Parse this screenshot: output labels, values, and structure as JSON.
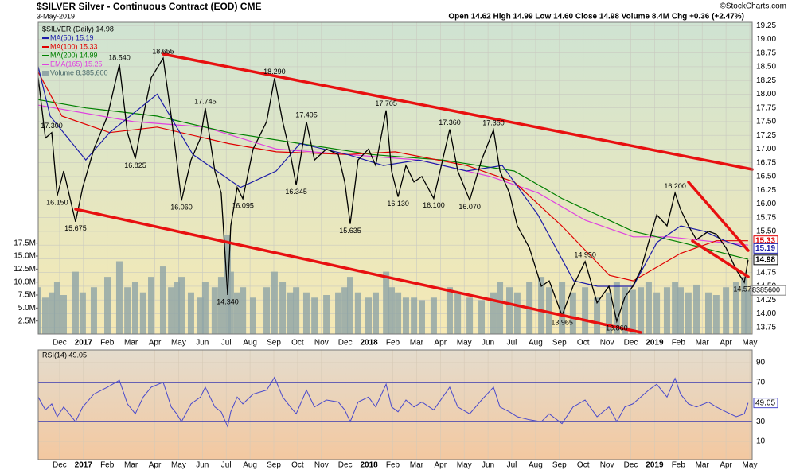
{
  "chart_data": {
    "type": "stock",
    "title": "$SILVER Silver - Continuous Contract (EOD) CME",
    "date": "3-May-2019",
    "quote": "Open 14.62 High 14.99 Low 14.60 Close 14.98 Volume 8.4M Chg +0.36 (+2.47%)",
    "credit": "©StockCharts.com",
    "grid": true,
    "xlim": [
      0,
      30
    ],
    "xticks": [
      {
        "value": 0.9,
        "label": "Dec"
      },
      {
        "value": 1.9,
        "label": "2017"
      },
      {
        "value": 2.9,
        "label": "Feb"
      },
      {
        "value": 3.9,
        "label": "Mar"
      },
      {
        "value": 4.9,
        "label": "Apr"
      },
      {
        "value": 5.9,
        "label": "May"
      },
      {
        "value": 6.9,
        "label": "Jun"
      },
      {
        "value": 7.9,
        "label": "Jul"
      },
      {
        "value": 8.9,
        "label": "Aug"
      },
      {
        "value": 9.9,
        "label": "Sep"
      },
      {
        "value": 10.9,
        "label": "Oct"
      },
      {
        "value": 11.9,
        "label": "Nov"
      },
      {
        "value": 12.9,
        "label": "Dec"
      },
      {
        "value": 13.9,
        "label": "2018"
      },
      {
        "value": 14.9,
        "label": "Feb"
      },
      {
        "value": 15.9,
        "label": "Mar"
      },
      {
        "value": 16.9,
        "label": "Apr"
      },
      {
        "value": 17.9,
        "label": "May"
      },
      {
        "value": 18.9,
        "label": "Jun"
      },
      {
        "value": 19.9,
        "label": "Jul"
      },
      {
        "value": 20.9,
        "label": "Aug"
      },
      {
        "value": 21.9,
        "label": "Sep"
      },
      {
        "value": 22.9,
        "label": "Oct"
      },
      {
        "value": 23.9,
        "label": "Nov"
      },
      {
        "value": 24.9,
        "label": "Dec"
      },
      {
        "value": 25.9,
        "label": "2019"
      },
      {
        "value": 26.9,
        "label": "Feb"
      },
      {
        "value": 27.9,
        "label": "Mar"
      },
      {
        "value": 28.9,
        "label": "Apr"
      },
      {
        "value": 29.9,
        "label": "May"
      }
    ],
    "ylim": [
      13.63,
      19.31
    ],
    "yticks": [
      {
        "value": 13.75,
        "label": "13.75"
      },
      {
        "value": 14,
        "label": "14.00"
      },
      {
        "value": 14.25,
        "label": "14.25"
      },
      {
        "value": 14.5,
        "label": "14.50"
      },
      {
        "value": 14.75,
        "label": "14.75"
      },
      {
        "value": 15,
        "label": "15.00"
      },
      {
        "value": 15.25,
        "label": "15.25"
      },
      {
        "value": 15.5,
        "label": "15.50"
      },
      {
        "value": 15.75,
        "label": "15.75"
      },
      {
        "value": 16,
        "label": "16.00"
      },
      {
        "value": 16.25,
        "label": "16.25"
      },
      {
        "value": 16.5,
        "label": "16.50"
      },
      {
        "value": 16.75,
        "label": "16.75"
      },
      {
        "value": 17,
        "label": "17.00"
      },
      {
        "value": 17.25,
        "label": "17.25"
      },
      {
        "value": 17.5,
        "label": "17.50"
      },
      {
        "value": 17.75,
        "label": "17.75"
      },
      {
        "value": 18,
        "label": "18.00"
      },
      {
        "value": 18.25,
        "label": "18.25"
      },
      {
        "value": 18.5,
        "label": "18.50"
      },
      {
        "value": 18.75,
        "label": "18.75"
      },
      {
        "value": 19,
        "label": "19.00"
      },
      {
        "value": 19.25,
        "label": "19.25"
      }
    ],
    "x": [
      0,
      0.3,
      0.57,
      0.8,
      1.07,
      1.57,
      1.87,
      2.34,
      2.91,
      3.41,
      3.75,
      4.08,
      4.41,
      4.75,
      5.25,
      5.59,
      5.82,
      6.02,
      6.42,
      6.82,
      7.02,
      7.42,
      7.69,
      7.96,
      8.09,
      8.36,
      8.6,
      9.03,
      9.6,
      9.93,
      10.27,
      10.6,
      10.84,
      11.27,
      11.61,
      12.11,
      12.61,
      12.88,
      13.11,
      13.44,
      13.88,
      14.18,
      14.62,
      14.85,
      15.12,
      15.45,
      15.79,
      16.12,
      16.62,
      17.29,
      17.63,
      18.13,
      18.63,
      19.13,
      19.4,
      19.8,
      20.13,
      20.64,
      21.14,
      21.47,
      22.01,
      22.47,
      22.98,
      23.48,
      23.98,
      24.31,
      24.65,
      24.98,
      25.32,
      25.65,
      25.99,
      26.42,
      26.76,
      26.99,
      27.32,
      27.66,
      28.16,
      28.49,
      28.9,
      29.33,
      29.67,
      29.83
    ],
    "series": [
      {
        "name": "$SILVER (Daily) 14.98",
        "color": "#000000",
        "values": [
          18.3,
          17.2,
          17.3,
          16.15,
          16.6,
          15.675,
          16.3,
          17.0,
          17.6,
          18.54,
          17.3,
          16.825,
          17.6,
          18.3,
          18.655,
          17.6,
          16.8,
          16.06,
          16.8,
          17.2,
          17.745,
          16.6,
          16.2,
          14.34,
          15.6,
          16.3,
          16.095,
          17.0,
          17.5,
          18.29,
          17.5,
          16.9,
          16.345,
          17.495,
          16.8,
          17.0,
          16.9,
          16.4,
          15.635,
          16.8,
          17.0,
          16.7,
          17.705,
          16.6,
          16.13,
          16.7,
          16.4,
          16.5,
          16.1,
          17.36,
          16.6,
          16.07,
          16.8,
          17.35,
          16.6,
          16.2,
          15.6,
          15.2,
          14.5,
          14.6,
          13.965,
          14.5,
          14.95,
          14.2,
          14.5,
          13.86,
          14.3,
          14.5,
          14.8,
          15.3,
          15.8,
          15.6,
          16.2,
          15.9,
          15.6,
          15.35,
          15.5,
          15.45,
          15.2,
          14.8,
          14.57,
          14.98
        ]
      },
      {
        "name": "MA(50) 15.19",
        "color": "#1c1ca8",
        "x": [
          0,
          0.5,
          2,
          3,
          5,
          6.5,
          8.5,
          10,
          11,
          13,
          14.5,
          16,
          18,
          19.5,
          21,
          22.5,
          23.5,
          25,
          26,
          27,
          28,
          29,
          29.83
        ],
        "values": [
          18.5,
          17.6,
          16.8,
          17.3,
          18.0,
          16.9,
          16.3,
          16.6,
          17.1,
          16.9,
          16.7,
          16.8,
          16.6,
          16.7,
          15.8,
          14.6,
          14.5,
          14.5,
          15.3,
          15.6,
          15.5,
          15.3,
          15.19
        ]
      },
      {
        "name": "MA(100) 15.33",
        "color": "#e00000",
        "x": [
          0,
          1,
          3,
          5,
          8,
          10,
          13,
          15,
          18,
          20,
          22,
          24,
          25,
          27,
          28.5,
          29.83
        ],
        "values": [
          18.4,
          17.6,
          17.3,
          17.4,
          17.1,
          16.95,
          16.9,
          16.95,
          16.7,
          16.4,
          15.6,
          14.7,
          14.6,
          15.1,
          15.33,
          15.33
        ]
      },
      {
        "name": "MA(200) 14.99",
        "color": "#008000",
        "x": [
          0,
          2,
          5,
          8,
          11,
          14,
          17,
          20,
          22,
          25,
          27,
          29.83
        ],
        "values": [
          17.9,
          17.75,
          17.6,
          17.3,
          17.1,
          16.9,
          16.8,
          16.6,
          16.1,
          15.5,
          15.3,
          14.99
        ]
      },
      {
        "name": "EMA(165) 15.25",
        "color": "#e040e0",
        "x": [
          0,
          4,
          7,
          10,
          13,
          16,
          19,
          21,
          23,
          25,
          26.5,
          28,
          29.83
        ],
        "values": [
          17.8,
          17.5,
          17.4,
          17.0,
          16.9,
          16.8,
          16.5,
          16.2,
          15.7,
          15.4,
          15.4,
          15.33,
          15.25
        ]
      }
    ],
    "value_tags": [
      {
        "value": 15.33,
        "color": "#e00000"
      },
      {
        "value": 15.19,
        "color": "#1c1ca8"
      },
      {
        "value": 14.98,
        "color": "#000000"
      }
    ],
    "peak_labels": [
      {
        "x": 0.57,
        "value": 17.3,
        "label": "17.300"
      },
      {
        "x": 3.41,
        "value": 18.54,
        "label": "18.540"
      },
      {
        "x": 5.25,
        "value": 18.655,
        "label": "18.655"
      },
      {
        "x": 7.02,
        "value": 17.745,
        "label": "17.745"
      },
      {
        "x": 9.93,
        "value": 18.29,
        "label": "18.290"
      },
      {
        "x": 11.27,
        "value": 17.495,
        "label": "17.495"
      },
      {
        "x": 14.62,
        "value": 17.705,
        "label": "17.705"
      },
      {
        "x": 17.29,
        "value": 17.36,
        "label": "17.360"
      },
      {
        "x": 19.13,
        "value": 17.35,
        "label": "17.350"
      },
      {
        "x": 22.98,
        "value": 14.95,
        "label": "14.950"
      },
      {
        "x": 26.76,
        "value": 16.2,
        "label": "16.200"
      }
    ],
    "trough_labels": [
      {
        "x": 0.8,
        "value": 16.15,
        "label": "16.150"
      },
      {
        "x": 1.57,
        "value": 15.675,
        "label": "15.675"
      },
      {
        "x": 4.08,
        "value": 16.825,
        "label": "16.825"
      },
      {
        "x": 6.02,
        "value": 16.06,
        "label": "16.060"
      },
      {
        "x": 7.96,
        "value": 14.34,
        "label": "14.340"
      },
      {
        "x": 8.6,
        "value": 16.095,
        "label": "16.095"
      },
      {
        "x": 10.84,
        "value": 16.345,
        "label": "16.345"
      },
      {
        "x": 13.11,
        "value": 15.635,
        "label": "15.635"
      },
      {
        "x": 15.12,
        "value": 16.13,
        "label": "16.130"
      },
      {
        "x": 16.62,
        "value": 16.1,
        "label": "16.100"
      },
      {
        "x": 18.13,
        "value": 16.07,
        "label": "16.070"
      },
      {
        "x": 22.01,
        "value": 13.965,
        "label": "13.965"
      },
      {
        "x": 24.31,
        "value": 13.86,
        "label": "13.860"
      },
      {
        "x": 29.67,
        "value": 14.57,
        "label": "14.570"
      }
    ],
    "volume": {
      "name": "Volume 8,385,600",
      "color": "#93a7a7",
      "ylim": [
        0,
        60000000
      ],
      "yticks": [
        {
          "value": 2500000,
          "label": "2.5M"
        },
        {
          "value": 5000000,
          "label": "5.0M"
        },
        {
          "value": 7500000,
          "label": "7.5M"
        },
        {
          "value": 10000000,
          "label": "10.0M"
        },
        {
          "value": 12500000,
          "label": "12.5M"
        },
        {
          "value": 15000000,
          "label": "15.0M"
        },
        {
          "value": 17500000,
          "label": "17.5M"
        }
      ],
      "tag": 8385600,
      "values": [
        9000000,
        7000000,
        8000000,
        10000000,
        7500000,
        12000000,
        8000000,
        9000000,
        11000000,
        14000000,
        9000000,
        10000000,
        8000000,
        11000000,
        13000000,
        9000000,
        10000000,
        11000000,
        8000000,
        7000000,
        10000000,
        9000000,
        11000000,
        19000000,
        12000000,
        8000000,
        9000000,
        7000000,
        9000000,
        12000000,
        10000000,
        8000000,
        9000000,
        8000000,
        7000000,
        7500000,
        8000000,
        9000000,
        11000000,
        8000000,
        7000000,
        8000000,
        12000000,
        9000000,
        8000000,
        7000000,
        7000000,
        6500000,
        7000000,
        9000000,
        8000000,
        7000000,
        6500000,
        8000000,
        10000000,
        9000000,
        8000000,
        10000000,
        11000000,
        9000000,
        10000000,
        8000000,
        9000000,
        7000000,
        8000000,
        10000000,
        9000000,
        8500000,
        9000000,
        10000000,
        8000000,
        9000000,
        10000000,
        9000000,
        8000000,
        9500000,
        8000000,
        7500000,
        9000000,
        10000000,
        11000000,
        8385600
      ]
    },
    "rsi": {
      "name": "RSI(14) 49.05",
      "color": "#4848cc",
      "ylim": [
        -8.6,
        102.9
      ],
      "yticks": [
        10,
        30,
        50,
        70,
        90
      ],
      "tag": 49.05,
      "values": [
        55,
        42,
        48,
        35,
        45,
        30,
        45,
        58,
        65,
        72,
        48,
        38,
        55,
        65,
        70,
        45,
        38,
        30,
        48,
        55,
        65,
        45,
        40,
        25,
        40,
        55,
        48,
        58,
        62,
        75,
        55,
        45,
        38,
        62,
        45,
        52,
        50,
        42,
        30,
        50,
        55,
        45,
        68,
        45,
        40,
        52,
        45,
        50,
        42,
        65,
        45,
        38,
        52,
        65,
        45,
        40,
        35,
        32,
        30,
        38,
        28,
        45,
        52,
        35,
        45,
        30,
        45,
        48,
        55,
        62,
        68,
        55,
        74,
        58,
        48,
        45,
        50,
        45,
        40,
        35,
        38,
        49.05
      ]
    }
  }
}
